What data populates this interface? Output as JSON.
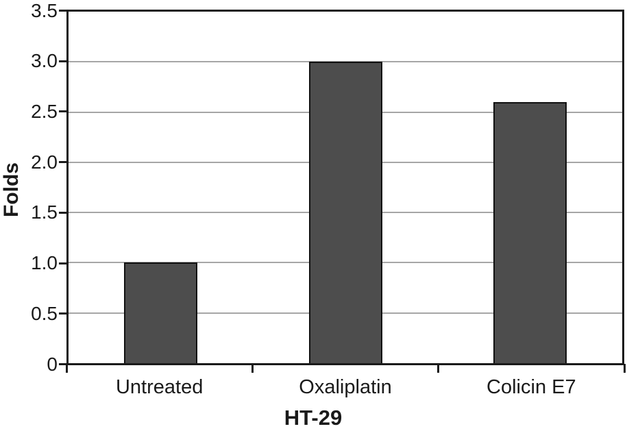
{
  "chart_data": {
    "type": "bar",
    "categories": [
      "Untreated",
      "Oxaliplatin",
      "Colicin E7"
    ],
    "values": [
      1.0,
      3.0,
      2.6
    ],
    "title": "",
    "xlabel": "HT-29",
    "ylabel": "Folds",
    "ylim": [
      0,
      3.5
    ],
    "ytick_step": 0.5,
    "ytick_labels": [
      "0",
      "0.5",
      "1.0",
      "1.5",
      "2.0",
      "2.5",
      "3.0",
      "3.5"
    ],
    "grid": true,
    "legend": "none",
    "colors": {
      "bar_fill": "#4d4d4d",
      "bar_border": "#111111",
      "gridline": "#a6a6a6",
      "axis": "#1a1a1a",
      "text": "#1a1a1a",
      "background": "#ffffff"
    }
  }
}
